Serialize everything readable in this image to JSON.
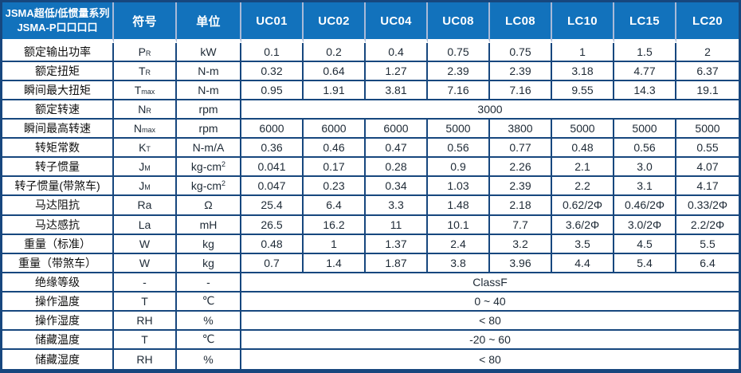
{
  "colors": {
    "header_bg": "#1272BC",
    "header_separator": "#A9BAD8",
    "grid_border": "#17477E",
    "header_text": "#FFFFFF",
    "value_text": "#1E2A36",
    "label_text": "#101010"
  },
  "header": {
    "title_line1": "JSMA超低/低惯量系列",
    "title_line2": "JSMA-P口口口口",
    "symbol_col": "符号",
    "unit_col": "单位",
    "models": [
      "UC01",
      "UC02",
      "UC04",
      "UC08",
      "LC08",
      "LC10",
      "LC15",
      "LC20"
    ]
  },
  "rows": [
    {
      "label": "额定输出功率",
      "symbol": "P_R",
      "unit": "kW",
      "values": [
        "0.1",
        "0.2",
        "0.4",
        "0.75",
        "0.75",
        "1",
        "1.5",
        "2"
      ]
    },
    {
      "label": "额定扭矩",
      "symbol": "T_R",
      "unit": "N-m",
      "values": [
        "0.32",
        "0.64",
        "1.27",
        "2.39",
        "2.39",
        "3.18",
        "4.77",
        "6.37"
      ]
    },
    {
      "label": "瞬间最大扭矩",
      "symbol": "T_max",
      "unit": "N-m",
      "values": [
        "0.95",
        "1.91",
        "3.81",
        "7.16",
        "7.16",
        "9.55",
        "14.3",
        "19.1"
      ]
    },
    {
      "label": "额定转速",
      "symbol": "N_R",
      "unit": "rpm",
      "span": "3000"
    },
    {
      "label": "瞬间最高转速",
      "symbol": "N_max",
      "unit": "rpm",
      "values": [
        "6000",
        "6000",
        "6000",
        "5000",
        "3800",
        "5000",
        "5000",
        "5000"
      ]
    },
    {
      "label": "转矩常数",
      "symbol": "K_T",
      "unit": "N-m/A",
      "values": [
        "0.36",
        "0.46",
        "0.47",
        "0.56",
        "0.77",
        "0.48",
        "0.56",
        "0.55"
      ]
    },
    {
      "label": "转子惯量",
      "symbol": "J_M",
      "unit": "kg-cm^2",
      "values": [
        "0.041",
        "0.17",
        "0.28",
        "0.9",
        "2.26",
        "2.1",
        "3.0",
        "4.07"
      ]
    },
    {
      "label": "转子惯量(带煞车)",
      "symbol": "J_M",
      "unit": "kg-cm^2",
      "values": [
        "0.047",
        "0.23",
        "0.34",
        "1.03",
        "2.39",
        "2.2",
        "3.1",
        "4.17"
      ]
    },
    {
      "label": "马达阻抗",
      "symbol": "Ra",
      "unit": "Ω",
      "values": [
        "25.4",
        "6.4",
        "3.3",
        "1.48",
        "2.18",
        "0.62/2Φ",
        "0.46/2Φ",
        "0.33/2Φ"
      ]
    },
    {
      "label": "马达感抗",
      "symbol": "La",
      "unit": "mH",
      "values": [
        "26.5",
        "16.2",
        "11",
        "10.1",
        "7.7",
        "3.6/2Φ",
        "3.0/2Φ",
        "2.2/2Φ"
      ]
    },
    {
      "label": "重量（标准）",
      "symbol": "W",
      "unit": "kg",
      "values": [
        "0.48",
        "1",
        "1.37",
        "2.4",
        "3.2",
        "3.5",
        "4.5",
        "5.5"
      ]
    },
    {
      "label": "重量（带煞车）",
      "symbol": "W",
      "unit": "kg",
      "values": [
        "0.7",
        "1.4",
        "1.87",
        "3.8",
        "3.96",
        "4.4",
        "5.4",
        "6.4"
      ]
    },
    {
      "label": "绝缘等级",
      "symbol": "-",
      "unit": "-",
      "span": "ClassF"
    },
    {
      "label": "操作温度",
      "symbol": "T",
      "unit": "℃",
      "span": "0 ~ 40"
    },
    {
      "label": "操作湿度",
      "symbol": "RH",
      "unit": "%",
      "span": "< 80"
    },
    {
      "label": "储藏温度",
      "symbol": "T",
      "unit": "℃",
      "span": "-20 ~ 60"
    },
    {
      "label": "储藏湿度",
      "symbol": "RH",
      "unit": "%",
      "span": "< 80"
    }
  ]
}
